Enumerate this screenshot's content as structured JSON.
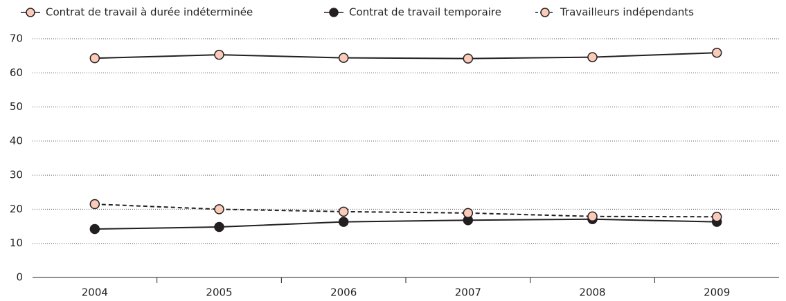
{
  "chart_data": {
    "type": "line",
    "categories": [
      "2004",
      "2005",
      "2006",
      "2007",
      "2008",
      "2009"
    ],
    "series": [
      {
        "name": "Contrat de travail à durée indéterminée",
        "color": "#f9cbb8",
        "line_color": "#231f20",
        "line_style": "solid",
        "values": [
          64.3,
          65.3,
          64.4,
          64.2,
          64.6,
          65.9
        ]
      },
      {
        "name": "Contrat de travail temporaire",
        "color": "#231f20",
        "line_color": "#231f20",
        "line_style": "solid",
        "values": [
          14.2,
          14.8,
          16.3,
          16.8,
          17.1,
          16.3
        ]
      },
      {
        "name": "Travailleurs indépendants",
        "color": "#f9cbb8",
        "line_color": "#231f20",
        "line_style": "dashed",
        "values": [
          21.5,
          20.0,
          19.3,
          18.9,
          17.9,
          17.8
        ]
      }
    ],
    "ylim": [
      0,
      70
    ],
    "yticks": [
      0,
      10,
      20,
      30,
      40,
      50,
      60,
      70
    ],
    "grid": true,
    "legend": "top"
  }
}
